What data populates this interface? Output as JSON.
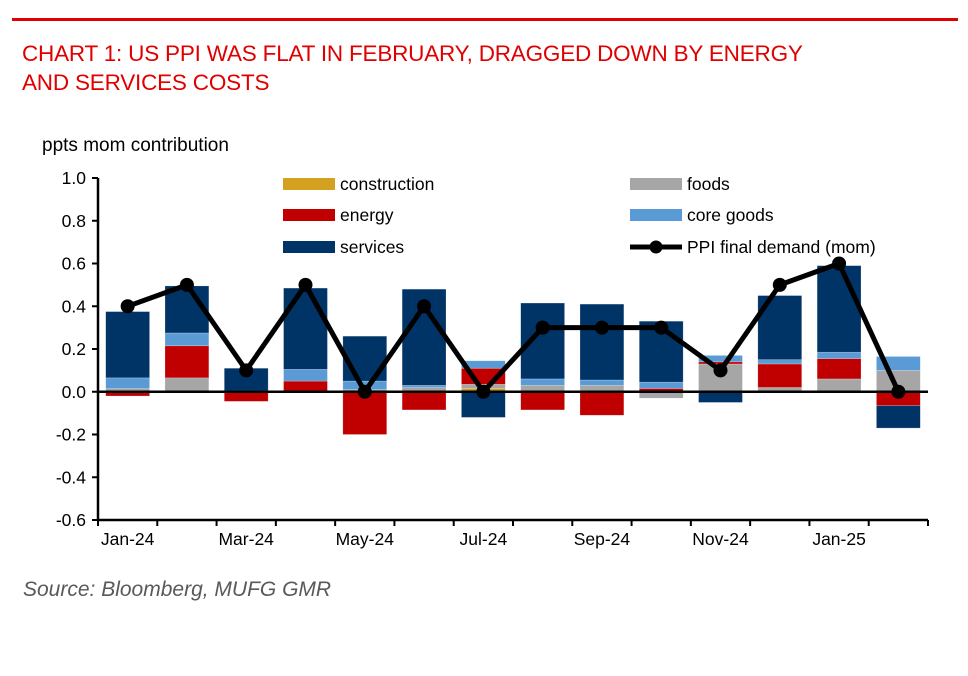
{
  "header": {
    "title_lines": [
      "CHART 1: US PPI WAS FLAT IN FEBRUARY, DRAGGED DOWN BY ENERGY",
      "AND SERVICES COSTS"
    ]
  },
  "footer": {
    "source": "Source: Bloomberg, MUFG GMR"
  },
  "chart_data": {
    "type": "bar",
    "subtype": "stacked bar with line overlay",
    "title": "CHART 1: US PPI WAS FLAT IN FEBRUARY, DRAGGED DOWN BY ENERGY AND SERVICES COSTS",
    "ylabel": "ppts mom contribution",
    "xlabel": "",
    "ylim": [
      -0.6,
      1.0
    ],
    "yticks": [
      "1.0",
      "0.8",
      "0.6",
      "0.4",
      "0.2",
      "0.0",
      "-0.2",
      "-0.4",
      "-0.6"
    ],
    "ytick_values": [
      1.0,
      0.8,
      0.6,
      0.4,
      0.2,
      0.0,
      -0.2,
      -0.4,
      -0.6
    ],
    "categories": [
      "Jan-24",
      "Feb-24",
      "Mar-24",
      "Apr-24",
      "May-24",
      "Jun-24",
      "Jul-24",
      "Aug-24",
      "Sep-24",
      "Oct-24",
      "Nov-24",
      "Dec-24",
      "Jan-25",
      "Feb-25"
    ],
    "xtick_labels": [
      "Jan-24",
      "Mar-24",
      "May-24",
      "Jul-24",
      "Sep-24",
      "Nov-24",
      "Jan-25"
    ],
    "xtick_label_indices": [
      0,
      2,
      4,
      6,
      8,
      10,
      12
    ],
    "grid": false,
    "legend": "top-right",
    "series": [
      {
        "name": "construction",
        "kind": "bar",
        "color": "#d4a020",
        "values": [
          0.005,
          0.0,
          0.0,
          0.0,
          0.0,
          0.0,
          0.015,
          0.0,
          0.0,
          0.0,
          0.0,
          0.0,
          0.0,
          0.0
        ]
      },
      {
        "name": "foods",
        "kind": "bar",
        "color": "#a6a6a6",
        "values": [
          0.01,
          0.065,
          0.0,
          0.0,
          0.01,
          0.02,
          0.02,
          0.03,
          0.03,
          -0.03,
          0.13,
          0.02,
          0.06,
          0.1
        ]
      },
      {
        "name": "energy",
        "kind": "bar",
        "color": "#c00000",
        "values": [
          -0.02,
          0.15,
          -0.045,
          0.05,
          -0.2,
          -0.085,
          0.075,
          -0.085,
          -0.11,
          0.015,
          0.01,
          0.11,
          0.095,
          -0.065
        ]
      },
      {
        "name": "core goods",
        "kind": "bar",
        "color": "#5b9bd5",
        "values": [
          0.05,
          0.06,
          0.005,
          0.055,
          0.04,
          0.01,
          0.035,
          0.03,
          0.025,
          0.03,
          0.03,
          0.02,
          0.03,
          0.065
        ]
      },
      {
        "name": "services",
        "kind": "bar",
        "color": "#003366",
        "values": [
          0.31,
          0.22,
          0.105,
          0.38,
          0.21,
          0.45,
          -0.12,
          0.355,
          0.355,
          0.285,
          -0.05,
          0.3,
          0.405,
          -0.105
        ]
      },
      {
        "name": "PPI final demand (mom)",
        "kind": "line",
        "color": "#000000",
        "values": [
          0.4,
          0.5,
          0.1,
          0.5,
          0.0,
          0.4,
          0.0,
          0.3,
          0.3,
          0.3,
          0.1,
          0.5,
          0.6,
          0.0
        ]
      }
    ],
    "legend_entries": [
      {
        "label": "construction",
        "color": "#d4a020",
        "kind": "bar"
      },
      {
        "label": "foods",
        "color": "#a6a6a6",
        "kind": "bar"
      },
      {
        "label": "energy",
        "color": "#c00000",
        "kind": "bar"
      },
      {
        "label": "core goods",
        "color": "#5b9bd5",
        "kind": "bar"
      },
      {
        "label": "services",
        "color": "#003366",
        "kind": "bar"
      },
      {
        "label": "PPI final demand (mom)",
        "color": "#000000",
        "kind": "line"
      }
    ]
  }
}
